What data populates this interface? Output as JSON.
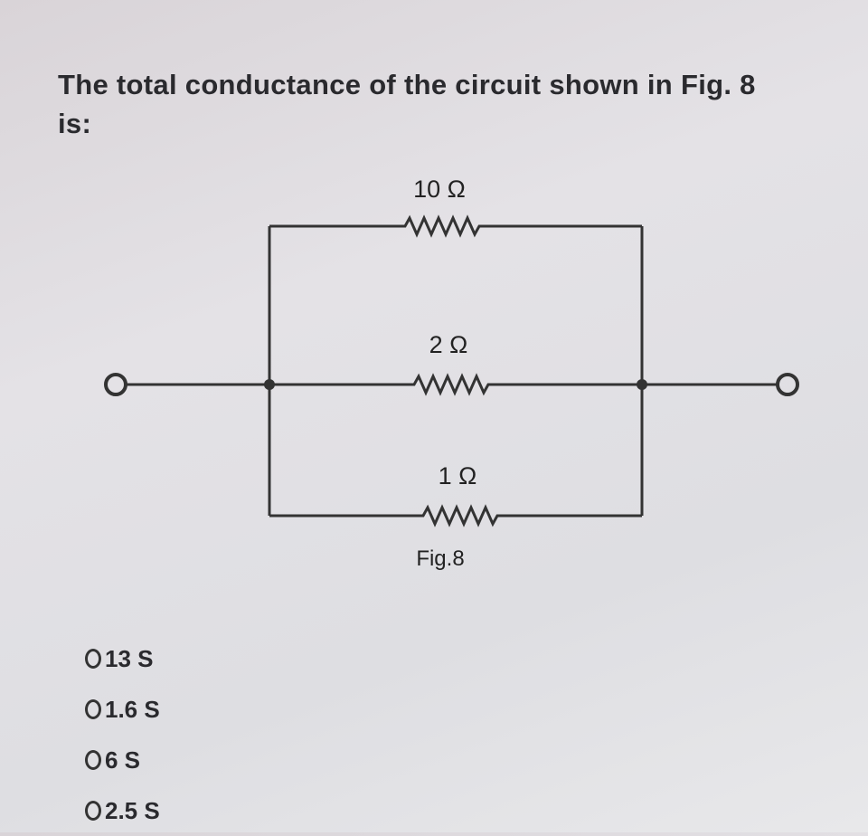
{
  "question": "The total conductance of the circuit shown in Fig. 8 is:",
  "figure": {
    "resistors": [
      "10 Ω",
      "2 Ω",
      "1 Ω"
    ],
    "caption": "Fig.8"
  },
  "options": [
    "13 S",
    "1.6 S",
    "6 S",
    "2.5 S"
  ]
}
